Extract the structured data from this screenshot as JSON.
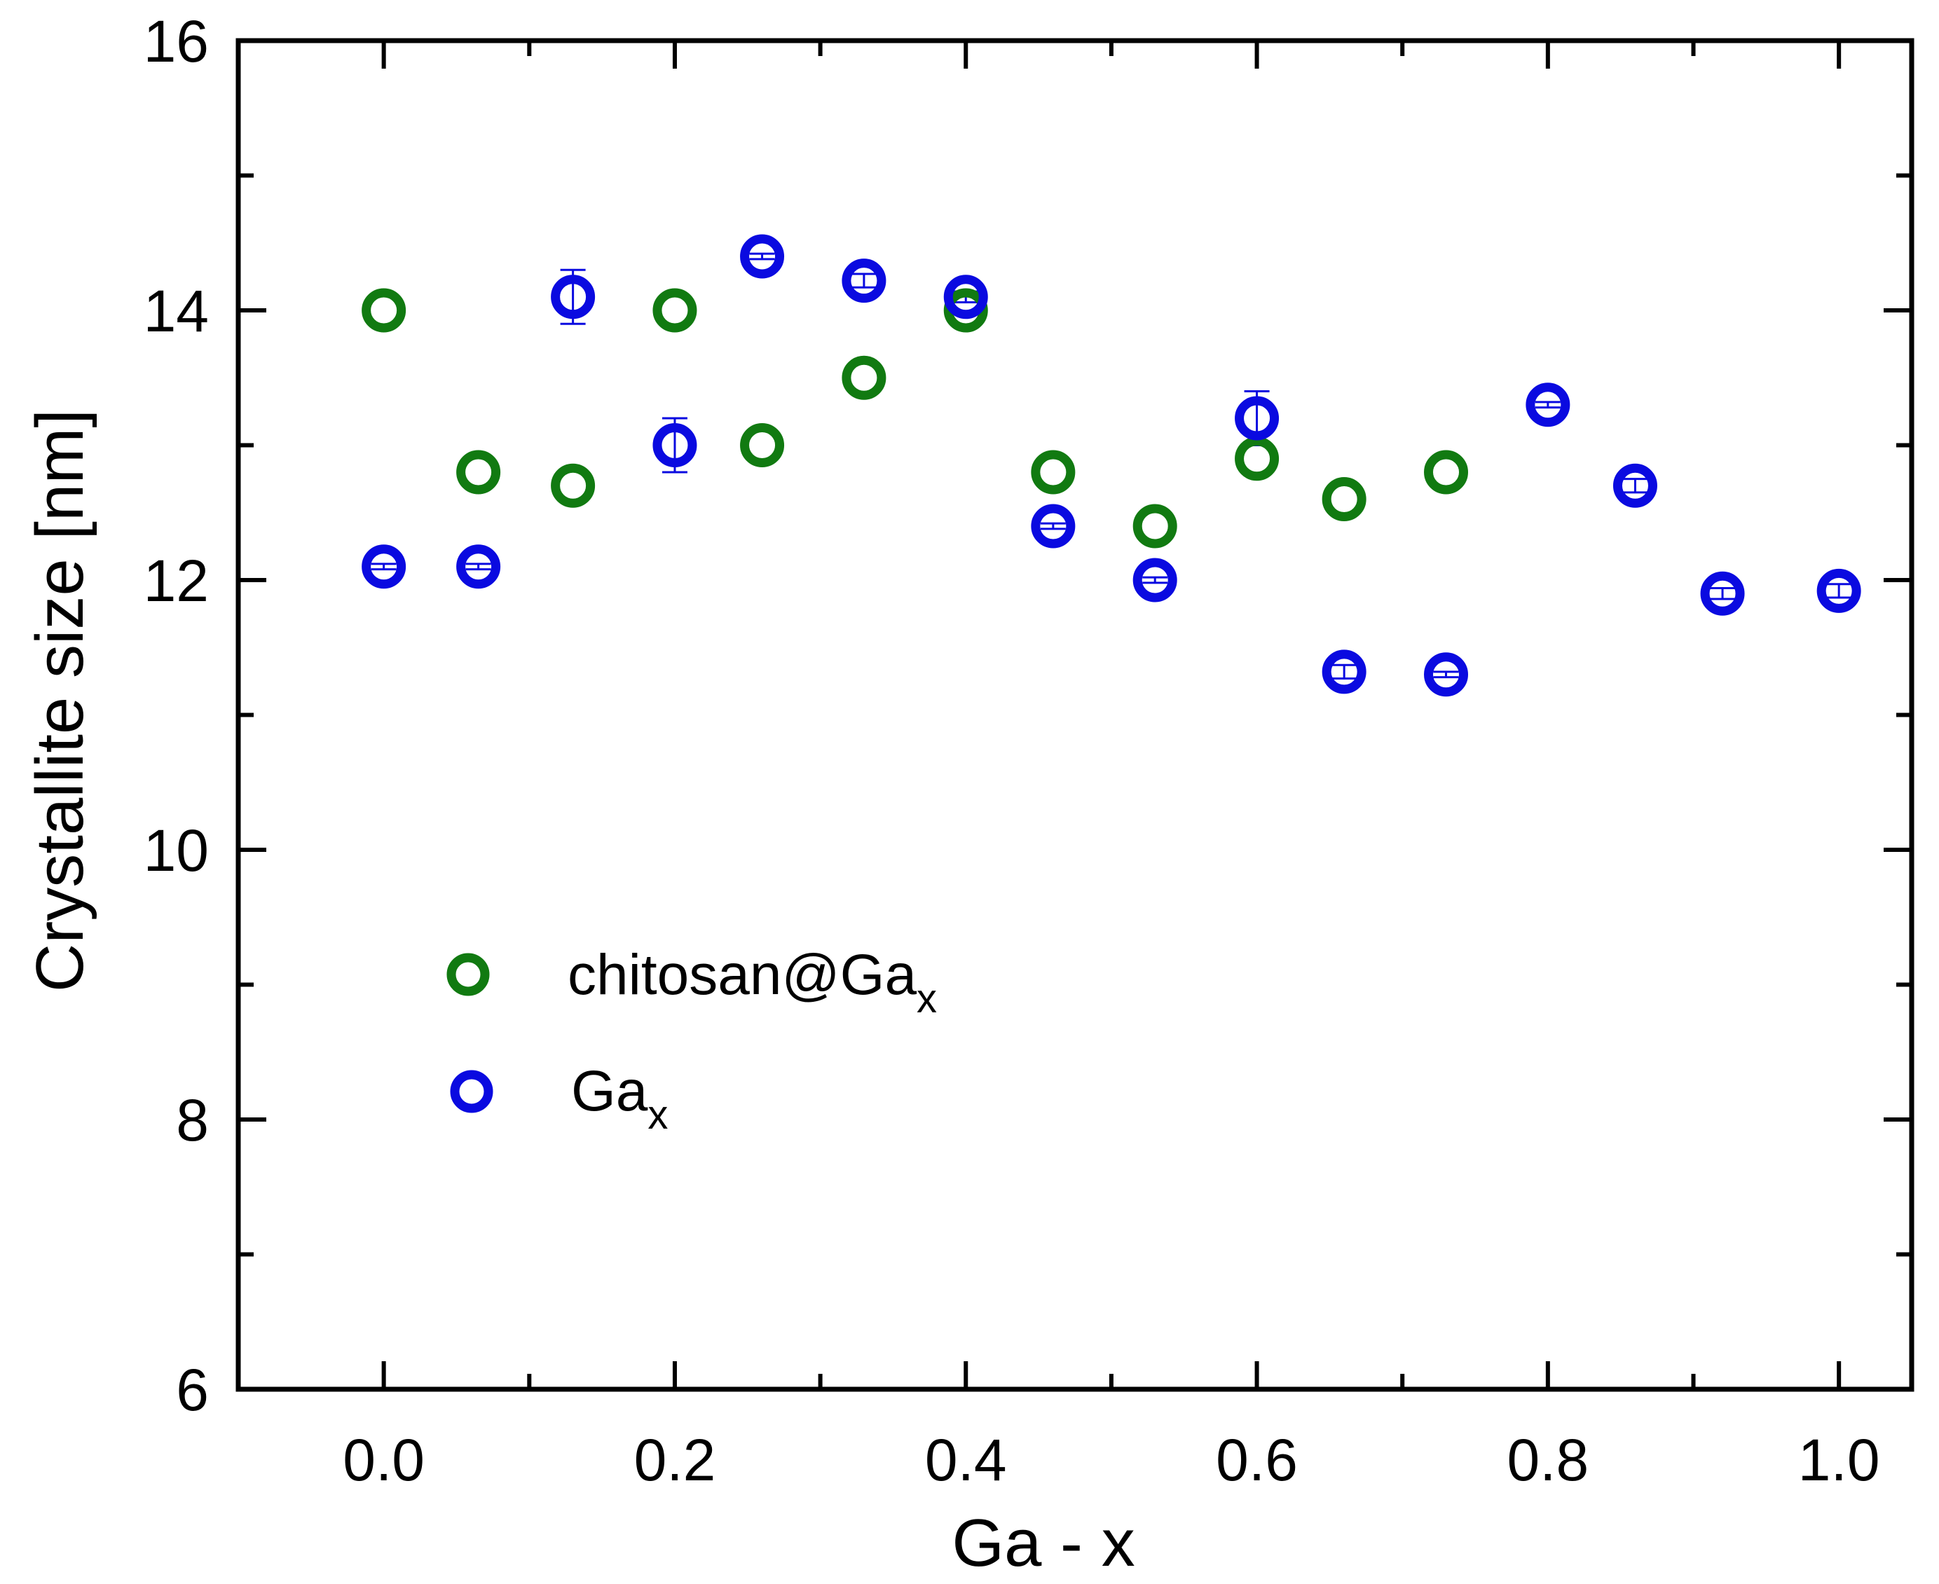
{
  "chart_data": {
    "type": "scatter",
    "xlabel": "Ga - x",
    "ylabel": "Crystallite size [nm]",
    "xlim": [
      -0.1,
      1.05
    ],
    "ylim": [
      6,
      16
    ],
    "x_ticks": [
      0.0,
      0.2,
      0.4,
      0.6,
      0.8,
      1.0
    ],
    "x_tick_labels": [
      "0.0",
      "0.2",
      "0.4",
      "0.6",
      "0.8",
      "1.0"
    ],
    "x_minor_ticks": [
      -0.1,
      0.1,
      0.3,
      0.5,
      0.7,
      0.9
    ],
    "y_ticks": [
      6,
      8,
      10,
      12,
      14,
      16
    ],
    "y_tick_labels": [
      "6",
      "8",
      "10",
      "12",
      "14",
      "16"
    ],
    "y_minor_ticks": [
      7,
      9,
      11,
      13,
      15
    ],
    "grid": false,
    "legend_position": "lower-left",
    "series": [
      {
        "name": "chitosan@Ga",
        "name_subscript": "x",
        "color": "#117a11",
        "points": [
          {
            "x": 0.0,
            "y": 14.0
          },
          {
            "x": 0.065,
            "y": 12.8
          },
          {
            "x": 0.13,
            "y": 12.7
          },
          {
            "x": 0.2,
            "y": 14.0
          },
          {
            "x": 0.26,
            "y": 13.0
          },
          {
            "x": 0.33,
            "y": 13.5
          },
          {
            "x": 0.4,
            "y": 14.0
          },
          {
            "x": 0.46,
            "y": 12.8
          },
          {
            "x": 0.53,
            "y": 12.4
          },
          {
            "x": 0.6,
            "y": 12.9
          },
          {
            "x": 0.66,
            "y": 12.6
          },
          {
            "x": 0.73,
            "y": 12.8
          }
        ]
      },
      {
        "name": "Ga",
        "name_subscript": "x",
        "color": "#0a0ae0",
        "points": [
          {
            "x": 0.0,
            "y": 12.1,
            "err": 0.02
          },
          {
            "x": 0.065,
            "y": 12.1,
            "err": 0.02
          },
          {
            "x": 0.13,
            "y": 14.1,
            "err": 0.2
          },
          {
            "x": 0.2,
            "y": 13.0,
            "err": 0.2
          },
          {
            "x": 0.26,
            "y": 14.4,
            "err": 0.02
          },
          {
            "x": 0.33,
            "y": 14.22,
            "err": 0.05
          },
          {
            "x": 0.4,
            "y": 14.1,
            "err": 0.04
          },
          {
            "x": 0.46,
            "y": 12.4,
            "err": 0.02
          },
          {
            "x": 0.53,
            "y": 12.0,
            "err": 0.02
          },
          {
            "x": 0.6,
            "y": 13.2,
            "err": 0.2
          },
          {
            "x": 0.66,
            "y": 11.32,
            "err": 0.05
          },
          {
            "x": 0.73,
            "y": 11.3,
            "err": 0.02
          },
          {
            "x": 0.8,
            "y": 13.3,
            "err": 0.02
          },
          {
            "x": 0.86,
            "y": 12.7,
            "err": 0.05
          },
          {
            "x": 0.92,
            "y": 11.9,
            "err": 0.04
          },
          {
            "x": 1.0,
            "y": 11.92,
            "err": 0.05
          }
        ]
      }
    ]
  }
}
